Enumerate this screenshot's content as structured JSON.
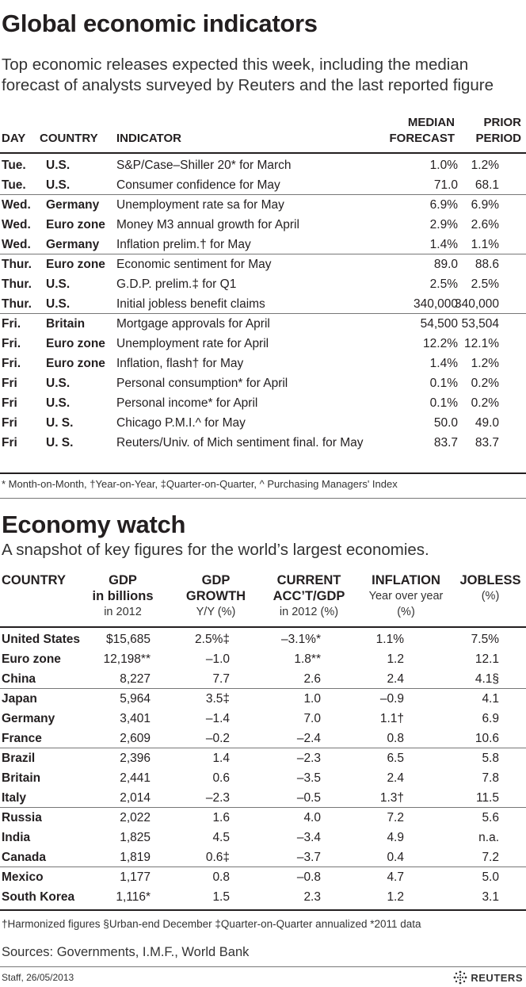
{
  "section1": {
    "title": "Global economic indicators",
    "subtitle_line1": "Top economic releases expected this week, including the median",
    "subtitle_line2": "forecast of analysts surveyed by Reuters and the last reported figure",
    "headers": {
      "day": "DAY",
      "country": "COUNTRY",
      "indicator": "INDICATOR",
      "median_line1": "MEDIAN",
      "median_line2": "FORECAST",
      "prior_line1": "PRIOR",
      "prior_line2": "PERIOD"
    },
    "rows": [
      {
        "day": "Tue.",
        "country": "U.S.",
        "indicator": "S&P/Case–Shiller 20* for March",
        "median": "1.0%",
        "prior": "1.2%"
      },
      {
        "day": "Tue.",
        "country": "U.S.",
        "indicator": "Consumer confidence for May",
        "median": "71.0",
        "prior": "68.1"
      },
      {
        "day": "Wed.",
        "country": "Germany",
        "indicator": "Unemployment rate sa for May",
        "median": "6.9%",
        "prior": "6.9%"
      },
      {
        "day": "Wed.",
        "country": "Euro zone",
        "indicator": "Money M3 annual growth for April",
        "median": "2.9%",
        "prior": "2.6%"
      },
      {
        "day": "Wed.",
        "country": "Germany",
        "indicator": "Inflation prelim.† for May",
        "median": "1.4%",
        "prior": "1.1%"
      },
      {
        "day": "Thur.",
        "country": "Euro zone",
        "indicator": "Economic sentiment for May",
        "median": "89.0",
        "prior": "88.6"
      },
      {
        "day": "Thur.",
        "country": "U.S.",
        "indicator": "G.D.P. prelim.‡ for Q1",
        "median": "2.5%",
        "prior": "2.5%"
      },
      {
        "day": "Thur.",
        "country": "U.S.",
        "indicator": "Initial jobless benefit claims",
        "median": "340,000",
        "prior": "340,000"
      },
      {
        "day": "Fri.",
        "country": "Britain",
        "indicator": "Mortgage approvals for April",
        "median": "54,500",
        "prior": "53,504"
      },
      {
        "day": "Fri.",
        "country": "Euro zone",
        "indicator": "Unemployment rate for April",
        "median": "12.2%",
        "prior": "12.1%"
      },
      {
        "day": "Fri.",
        "country": "Euro zone",
        "indicator": "Inflation, flash† for May",
        "median": "1.4%",
        "prior": "1.2%"
      },
      {
        "day": "Fri",
        "country": "U.S.",
        "indicator": "Personal consumption* for April",
        "median": "0.1%",
        "prior": "0.2%"
      },
      {
        "day": "Fri",
        "country": "U.S.",
        "indicator": "Personal income* for April",
        "median": "0.1%",
        "prior": "0.2%"
      },
      {
        "day": "Fri",
        "country": "U. S.",
        "indicator": "Chicago P.M.I.^ for May",
        "median": "50.0",
        "prior": "49.0"
      },
      {
        "day": "Fri",
        "country": "U. S.",
        "indicator": "Reuters/Univ. of Mich sentiment final. for May",
        "median": "83.7",
        "prior": "83.7"
      }
    ],
    "footnote": "* Month-on-Month, †Year-on-Year, ‡Quarter-on-Quarter, ^ Purchasing Managers' Index"
  },
  "section2": {
    "title": "Economy watch",
    "subtitle": "A snapshot of key figures for the world’s largest economies.",
    "headers": {
      "country": "COUNTRY",
      "gdp_bold": "GDP",
      "gdp_bold2": "in billions",
      "gdp_note": "in 2012",
      "growth_bold": "GDP",
      "growth_bold2": "GROWTH",
      "growth_note": "Y/Y (%)",
      "acc_bold": "CURRENT",
      "acc_bold2": "ACC’T/GDP",
      "acc_note": "in 2012 (%)",
      "inf_bold": "INFLATION",
      "inf_note": "Year over year",
      "inf_note2": "(%)",
      "job_bold": "JOBLESS",
      "job_note": "(%)"
    },
    "rows": [
      {
        "country": "United States",
        "gdp": "$15,685",
        "growth": "2.5%‡",
        "acc": "–3.1%*",
        "inflation": "1.1%",
        "jobless": "7.5%"
      },
      {
        "country": "Euro zone",
        "gdp": "12,198**",
        "growth": "–1.0",
        "acc": "1.8**",
        "inflation": "1.2",
        "jobless": "12.1"
      },
      {
        "country": "China",
        "gdp": "8,227",
        "growth": "7.7",
        "acc": "2.6",
        "inflation": "2.4",
        "jobless": "4.1§"
      },
      {
        "country": "Japan",
        "gdp": "5,964",
        "growth": "3.5‡",
        "acc": "1.0",
        "inflation": "–0.9",
        "jobless": "4.1"
      },
      {
        "country": "Germany",
        "gdp": "3,401",
        "growth": "–1.4",
        "acc": "7.0",
        "inflation": "1.1†",
        "jobless": "6.9"
      },
      {
        "country": "France",
        "gdp": "2,609",
        "growth": "–0.2",
        "acc": "–2.4",
        "inflation": "0.8",
        "jobless": "10.6"
      },
      {
        "country": "Brazil",
        "gdp": "2,396",
        "growth": "1.4",
        "acc": "–2.3",
        "inflation": "6.5",
        "jobless": "5.8"
      },
      {
        "country": "Britain",
        "gdp": "2,441",
        "growth": "0.6",
        "acc": "–3.5",
        "inflation": "2.4",
        "jobless": "7.8"
      },
      {
        "country": "Italy",
        "gdp": "2,014",
        "growth": "–2.3",
        "acc": "–0.5",
        "inflation": "1.3†",
        "jobless": "11.5"
      },
      {
        "country": "Russia",
        "gdp": "2,022",
        "growth": "1.6",
        "acc": "4.0",
        "inflation": "7.2",
        "jobless": "5.6"
      },
      {
        "country": "India",
        "gdp": "1,825",
        "growth": "4.5",
        "acc": "–3.4",
        "inflation": "4.9",
        "jobless": "n.a."
      },
      {
        "country": "Canada",
        "gdp": "1,819",
        "growth": "0.6‡",
        "acc": "–3.7",
        "inflation": "0.4",
        "jobless": "7.2"
      },
      {
        "country": "Mexico",
        "gdp": "1,177",
        "growth": "0.8",
        "acc": "–0.8",
        "inflation": "4.7",
        "jobless": "5.0"
      },
      {
        "country": "South Korea",
        "gdp": "1,116*",
        "growth": "1.5",
        "acc": "2.3",
        "inflation": "1.2",
        "jobless": "3.1"
      }
    ],
    "notes": "†Harmonized figures  §Urban-end December  ‡Quarter-on-Quarter annualized  *2011 data",
    "sources": "Sources: Governments, I.M.F., World Bank"
  },
  "credit": "Staff, 26/05/2013",
  "brand": "REUTERS"
}
